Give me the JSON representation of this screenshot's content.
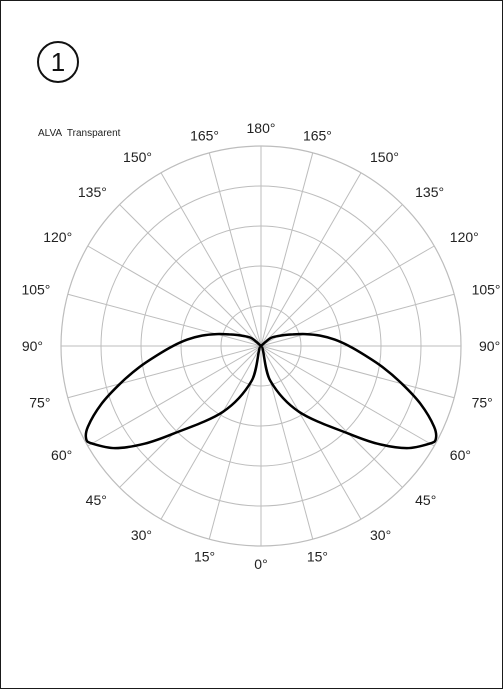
{
  "page": {
    "badge_number": "1",
    "product_label": "ALVA  Transparent"
  },
  "chart_data": {
    "type": "polar",
    "title": "",
    "angle_unit": "degrees",
    "angle_ticks_left": [
      "180°",
      "165°",
      "150°",
      "135°",
      "120°",
      "105°",
      "90°",
      "75°",
      "60°",
      "45°",
      "30°",
      "15°",
      "0°"
    ],
    "angle_ticks_right": [
      "165°",
      "150°",
      "135°",
      "120°",
      "105°",
      "90°",
      "75°",
      "60°",
      "45°",
      "30°",
      "15°"
    ],
    "tick_values": [
      0,
      15,
      30,
      45,
      60,
      75,
      90,
      105,
      120,
      135,
      150,
      165,
      180
    ],
    "radial_rings": 5,
    "radial_range": [
      0,
      1
    ],
    "grid": true,
    "symmetric": true,
    "series": [
      {
        "angles": [
          0,
          15,
          30,
          45,
          50,
          55,
          60,
          62,
          65,
          70,
          75,
          80,
          85,
          90,
          95,
          100,
          105,
          110,
          115,
          120,
          130,
          140
        ],
        "values": [
          0.0,
          0.18,
          0.38,
          0.62,
          0.76,
          0.89,
          0.975,
          0.99,
          0.955,
          0.85,
          0.73,
          0.62,
          0.52,
          0.44,
          0.37,
          0.3,
          0.23,
          0.17,
          0.13,
          0.1,
          0.06,
          0.0
        ]
      }
    ],
    "colors": {
      "curve": "#000000",
      "grid": "#bdbdbd",
      "text": "#222222"
    }
  }
}
